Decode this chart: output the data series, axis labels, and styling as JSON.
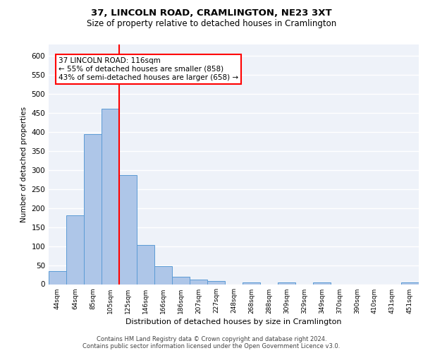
{
  "title1": "37, LINCOLN ROAD, CRAMLINGTON, NE23 3XT",
  "title2": "Size of property relative to detached houses in Cramlington",
  "xlabel": "Distribution of detached houses by size in Cramlington",
  "ylabel": "Number of detached properties",
  "categories": [
    "44sqm",
    "64sqm",
    "85sqm",
    "105sqm",
    "125sqm",
    "146sqm",
    "166sqm",
    "186sqm",
    "207sqm",
    "227sqm",
    "248sqm",
    "268sqm",
    "288sqm",
    "309sqm",
    "329sqm",
    "349sqm",
    "370sqm",
    "390sqm",
    "410sqm",
    "431sqm",
    "451sqm"
  ],
  "values": [
    35,
    180,
    393,
    460,
    287,
    102,
    48,
    19,
    12,
    8,
    0,
    5,
    0,
    5,
    0,
    5,
    0,
    0,
    0,
    0,
    5
  ],
  "bar_color": "#aec6e8",
  "bar_edge_color": "#5b9bd5",
  "vline_x": 3.5,
  "vline_color": "red",
  "annotation_text": "37 LINCOLN ROAD: 116sqm\n← 55% of detached houses are smaller (858)\n43% of semi-detached houses are larger (658) →",
  "annotation_box_color": "white",
  "annotation_box_edge": "red",
  "ylim": [
    0,
    630
  ],
  "yticks": [
    0,
    50,
    100,
    150,
    200,
    250,
    300,
    350,
    400,
    450,
    500,
    550,
    600
  ],
  "footer1": "Contains HM Land Registry data © Crown copyright and database right 2024.",
  "footer2": "Contains public sector information licensed under the Open Government Licence v3.0.",
  "bg_color": "#eef2f9",
  "grid_color": "white"
}
